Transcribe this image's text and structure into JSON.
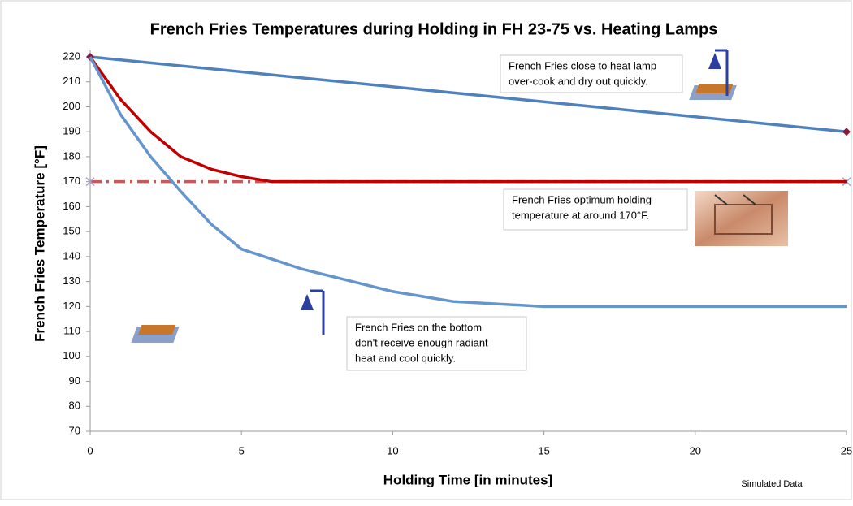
{
  "chart_data": {
    "type": "line",
    "title": "French Fries Temperatures during Holding in FH 23-75 vs. Heating Lamps",
    "x_label": "Holding Time [in minutes]",
    "y_label": "French Fries Temperature [°F]",
    "xlim": [
      0,
      25
    ],
    "xticks": [
      0,
      5,
      10,
      15,
      20,
      25
    ],
    "ylim": [
      70,
      220
    ],
    "yticks": [
      70,
      80,
      90,
      100,
      110,
      120,
      130,
      140,
      150,
      160,
      170,
      180,
      190,
      200,
      210,
      220
    ],
    "grid": false,
    "series": [
      {
        "color": "#c55a5a",
        "dash": "dashdot",
        "marker": "x",
        "marker_color": "#b0a0c8",
        "x": [
          0,
          25
        ],
        "values": [
          170,
          170
        ]
      },
      {
        "color": "#4f81bd",
        "marker": "diamond",
        "marker_color": "#8b1a3a",
        "x": [
          0,
          25
        ],
        "values": [
          220,
          190
        ]
      },
      {
        "color": "#c00000",
        "x": [
          0,
          1,
          2,
          3,
          4,
          5,
          6,
          7,
          25
        ],
        "values": [
          220,
          203,
          190,
          180,
          175,
          172,
          170,
          170,
          170
        ]
      },
      {
        "color": "#6495cd",
        "x": [
          0,
          1,
          2,
          3,
          4,
          5,
          6,
          7,
          8,
          10,
          12,
          15,
          25
        ],
        "values": [
          220,
          197,
          180,
          166,
          153,
          143,
          139,
          135,
          132,
          126,
          122,
          120,
          120
        ]
      }
    ],
    "annotations": [
      [
        "French Fries close to heat lamp",
        "over-cook and dry out quickly."
      ],
      [
        "French Fries optimum holding",
        "temperature at around 170°F."
      ],
      [
        "French Fries on the bottom",
        "don't receive enough radiant",
        "heat and cool quickly."
      ]
    ],
    "note": "Simulated Data"
  }
}
